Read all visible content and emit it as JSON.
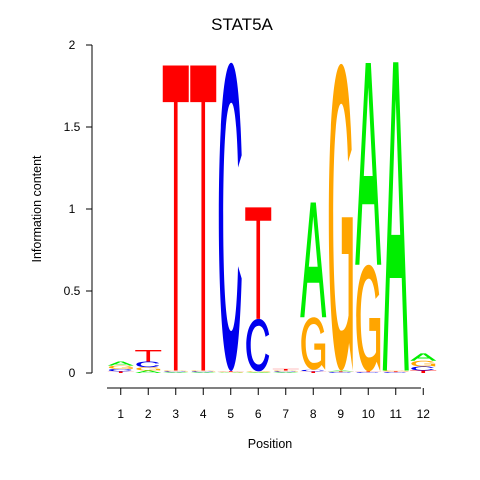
{
  "chart_data": {
    "type": "sequence_logo",
    "title": "STAT5A",
    "xlabel": "Position",
    "ylabel": "Information content",
    "ylim": [
      0,
      2
    ],
    "yticks": [
      "0",
      "0.5",
      "1",
      "1.5",
      "2"
    ],
    "positions": [
      "1",
      "2",
      "3",
      "4",
      "5",
      "6",
      "7",
      "8",
      "9",
      "10",
      "11",
      "12"
    ],
    "colors": {
      "A": "#00ee00",
      "C": "#0000ee",
      "G": "#ffa500",
      "T": "#ff0000"
    },
    "letters": [
      [
        {
          "base": "T",
          "height": 0.01
        },
        {
          "base": "C",
          "height": 0.015
        },
        {
          "base": "G",
          "height": 0.02
        },
        {
          "base": "A",
          "height": 0.025
        }
      ],
      [
        {
          "base": "A",
          "height": 0.015
        },
        {
          "base": "G",
          "height": 0.02
        },
        {
          "base": "C",
          "height": 0.035
        },
        {
          "base": "T",
          "height": 0.07
        }
      ],
      [
        {
          "base": "A",
          "height": 0.005
        },
        {
          "base": "C",
          "height": 0.005
        },
        {
          "base": "G",
          "height": 0.005
        },
        {
          "base": "T",
          "height": 1.86
        }
      ],
      [
        {
          "base": "A",
          "height": 0.005
        },
        {
          "base": "C",
          "height": 0.005
        },
        {
          "base": "G",
          "height": 0.005
        },
        {
          "base": "T",
          "height": 1.86
        }
      ],
      [
        {
          "base": "A",
          "height": 0.004
        },
        {
          "base": "G",
          "height": 0.004
        },
        {
          "base": "T",
          "height": 0.004
        },
        {
          "base": "C",
          "height": 1.88
        }
      ],
      [
        {
          "base": "A",
          "height": 0.005
        },
        {
          "base": "G",
          "height": 0.005
        },
        {
          "base": "C",
          "height": 0.32
        },
        {
          "base": "T",
          "height": 0.68
        }
      ],
      [
        {
          "base": "A",
          "height": 0.005
        },
        {
          "base": "C",
          "height": 0.005
        },
        {
          "base": "G",
          "height": 0.005
        },
        {
          "base": "T",
          "height": 0.01
        }
      ],
      [
        {
          "base": "T",
          "height": 0.01
        },
        {
          "base": "C",
          "height": 0.01
        },
        {
          "base": "G",
          "height": 0.32
        },
        {
          "base": "A",
          "height": 0.7
        }
      ],
      [
        {
          "base": "C",
          "height": 0.005
        },
        {
          "base": "T",
          "height": 0.005
        },
        {
          "base": "A",
          "height": 0.005
        },
        {
          "base": "G",
          "height": 1.87
        }
      ],
      [
        {
          "base": "C",
          "height": 0.005
        },
        {
          "base": "T",
          "height": 0.005
        },
        {
          "base": "G",
          "height": 0.65
        },
        {
          "base": "A",
          "height": 1.23
        }
      ],
      [
        {
          "base": "C",
          "height": 0.005
        },
        {
          "base": "T",
          "height": 0.005
        },
        {
          "base": "G",
          "height": 0.005
        },
        {
          "base": "A",
          "height": 1.88
        }
      ],
      [
        {
          "base": "T",
          "height": 0.015
        },
        {
          "base": "C",
          "height": 0.025
        },
        {
          "base": "G",
          "height": 0.035
        },
        {
          "base": "A",
          "height": 0.045
        }
      ]
    ]
  }
}
